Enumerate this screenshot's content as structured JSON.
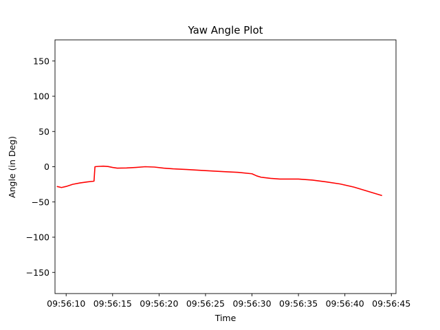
{
  "chart_data": {
    "type": "line",
    "title": "Yaw Angle Plot",
    "xlabel": "Time",
    "ylabel": "Angle (in Deg)",
    "xlim": [
      "09:56:08.8",
      "09:56:45.5"
    ],
    "ylim": [
      -180,
      180
    ],
    "grid": false,
    "x_ticks": [
      "09:56:10",
      "09:56:15",
      "09:56:20",
      "09:56:25",
      "09:56:30",
      "09:56:35",
      "09:56:40",
      "09:56:45"
    ],
    "y_ticks": [
      -150,
      -100,
      -50,
      0,
      50,
      100,
      150
    ],
    "series": [
      {
        "color": "#ff0000",
        "x": [
          "09:56:09.0",
          "09:56:09.5",
          "09:56:10.0",
          "09:56:10.7",
          "09:56:11.5",
          "09:56:12.3",
          "09:56:13.0",
          "09:56:13.1",
          "09:56:13.5",
          "09:56:14.0",
          "09:56:14.5",
          "09:56:15.0",
          "09:56:15.5",
          "09:56:16.5",
          "09:56:17.5",
          "09:56:18.5",
          "09:56:19.5",
          "09:56:20.5",
          "09:56:21.5",
          "09:56:23.0",
          "09:56:25.0",
          "09:56:27.0",
          "09:56:28.5",
          "09:56:30.0",
          "09:56:30.5",
          "09:56:31.0",
          "09:56:32.0",
          "09:56:33.0",
          "09:56:34.0",
          "09:56:35.0",
          "09:56:36.5",
          "09:56:38.0",
          "09:56:39.5",
          "09:56:41.0",
          "09:56:42.5",
          "09:56:44.0"
        ],
        "y": [
          -28,
          -29.5,
          -28,
          -25,
          -23,
          -21.5,
          -20.5,
          0,
          0.5,
          0.8,
          0.3,
          -1,
          -2,
          -1.8,
          -1,
          0,
          -0.5,
          -2,
          -3,
          -4,
          -5.5,
          -7,
          -8,
          -10,
          -13,
          -15,
          -16.5,
          -17.5,
          -17.5,
          -17.5,
          -19,
          -21.5,
          -24.5,
          -29,
          -35,
          -41
        ]
      }
    ]
  }
}
